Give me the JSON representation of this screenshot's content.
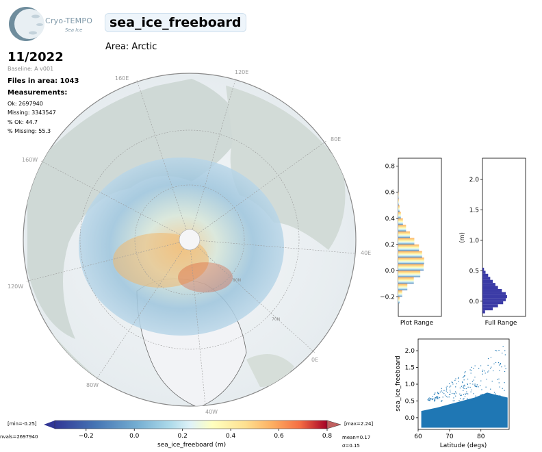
{
  "logo": {
    "name": "Cryo-TEMPO",
    "sub": "Sea Ice"
  },
  "header": {
    "title": "sea_ice_freeboard",
    "area": "Area: Arctic"
  },
  "info": {
    "date": "11/2022",
    "baseline": "Baseline: A v001",
    "files": "Files in area: 1043",
    "measurements_heading": "Measurements:",
    "ok": "Ok: 2697940",
    "missing": "Missing: 3343547",
    "pct_ok": "% Ok: 44.7",
    "pct_missing": "% Missing: 55.3"
  },
  "map": {
    "lon_labels": [
      "120E",
      "80E",
      "40E",
      "0E",
      "40W",
      "80W",
      "120W",
      "160W",
      "160E"
    ],
    "lat_labels": [
      "80N",
      "70N"
    ]
  },
  "colorbar": {
    "min_label": "[min=-0.25]",
    "max_label": "[max=2.24]",
    "nvals": "nvals=2697940",
    "mean": "mean=0.17",
    "sigma": "σ=0.15",
    "xlabel": "sea_ice_freeboard (m)",
    "ticks": [
      "−0.2",
      "0.0",
      "0.2",
      "0.4",
      "0.6",
      "0.8"
    ]
  },
  "chart_data": [
    {
      "type": "histogram",
      "title": "Plot Range",
      "orientation": "horizontal",
      "y_ticks": [
        "−0.2",
        "0.0",
        "0.2",
        "0.4",
        "0.6",
        "0.8"
      ],
      "ylim": [
        -0.35,
        0.86
      ],
      "bins": [
        -0.25,
        -0.2,
        -0.15,
        -0.1,
        -0.05,
        0.0,
        0.05,
        0.1,
        0.15,
        0.2,
        0.25,
        0.3,
        0.35,
        0.4,
        0.45,
        0.5,
        0.55
      ],
      "counts": [
        0.05,
        0.15,
        0.35,
        0.6,
        0.85,
        0.98,
        1.0,
        0.92,
        0.8,
        0.62,
        0.45,
        0.3,
        0.18,
        0.1,
        0.05,
        0.02,
        0.01
      ],
      "colormap": "RdYlBu_r"
    },
    {
      "type": "histogram",
      "title": "Full Range",
      "ylabel": "(m)",
      "orientation": "horizontal",
      "y_ticks": [
        "0.0",
        "0.5",
        "1.0",
        "1.5",
        "2.0"
      ],
      "ylim": [
        -0.25,
        2.35
      ],
      "bins": [
        -0.2,
        -0.15,
        -0.1,
        -0.05,
        0.0,
        0.05,
        0.1,
        0.15,
        0.2,
        0.25,
        0.3,
        0.35,
        0.4,
        0.45,
        0.5
      ],
      "counts": [
        0.1,
        0.4,
        0.6,
        0.8,
        0.9,
        0.95,
        0.9,
        0.75,
        0.6,
        0.5,
        0.4,
        0.3,
        0.22,
        0.12,
        0.06
      ],
      "color": "#3b3ba6"
    },
    {
      "type": "scatter",
      "xlabel": "Latitude (degs)",
      "ylabel": "sea_ice_freeboard",
      "xlim": [
        60,
        89
      ],
      "ylim": [
        -0.35,
        2.35
      ],
      "x_ticks": [
        "60",
        "70",
        "80"
      ],
      "y_ticks": [
        "0.0",
        "0.5",
        "1.0",
        "1.5",
        "2.0"
      ],
      "color": "#1f77b4"
    }
  ]
}
